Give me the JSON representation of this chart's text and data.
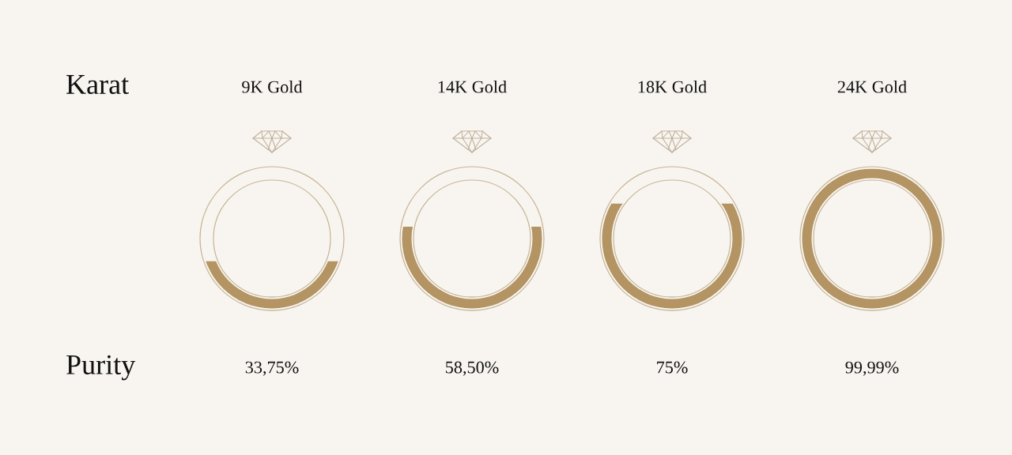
{
  "chart_data": {
    "type": "other",
    "categories": [
      "9K Gold",
      "14K Gold",
      "18K Gold",
      "24K Gold"
    ],
    "values": [
      33.75,
      58.5,
      75,
      99.99
    ],
    "value_labels": [
      "33,75%",
      "58,50%",
      "75%",
      "99,99%"
    ],
    "color": "#b39462",
    "annotations": [
      "Karat",
      "Purity"
    ]
  }
}
